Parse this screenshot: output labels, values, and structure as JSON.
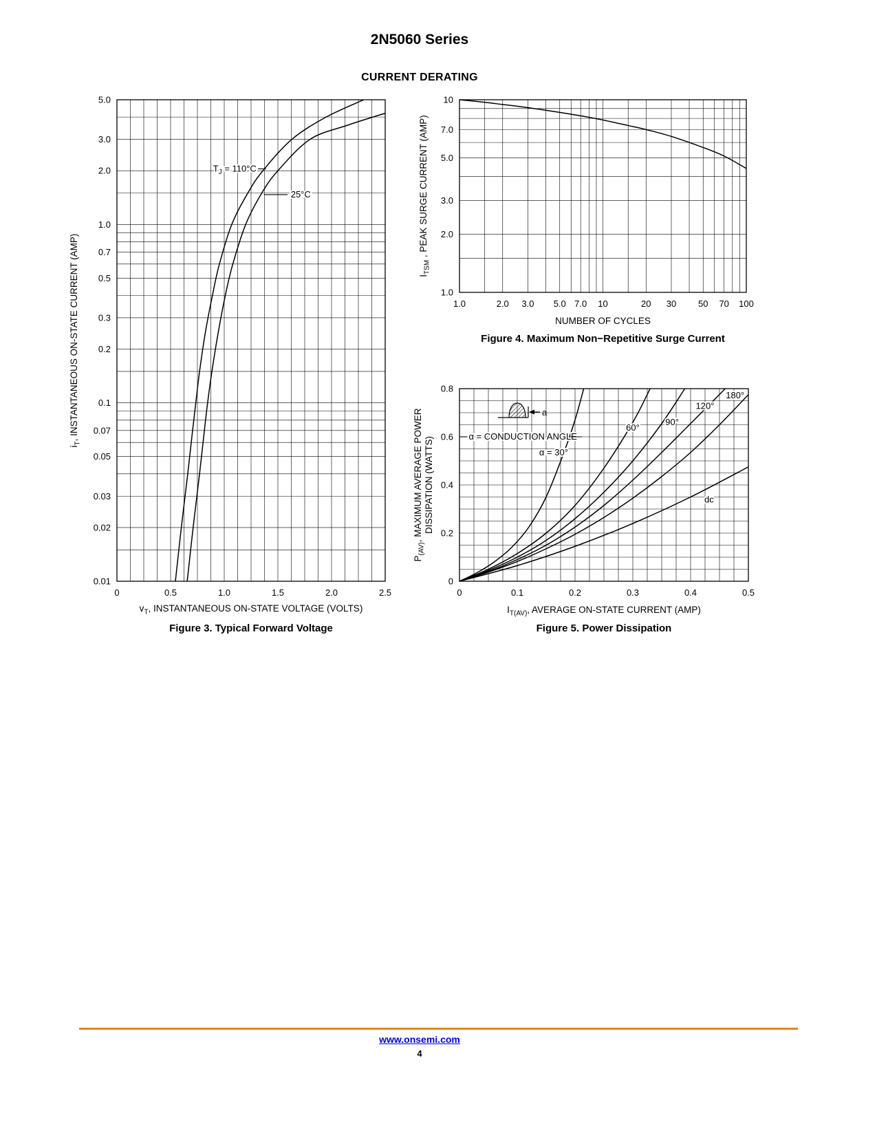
{
  "page": {
    "title": "2N5060 Series",
    "section_heading": "CURRENT DERATING",
    "footer": {
      "link": "www.onsemi.com",
      "page_number": "4",
      "rule_color": "#e8821e",
      "link_color": "#0000ee"
    }
  },
  "chart_data": [
    {
      "id": "fig3",
      "type": "line",
      "caption": "Figure 3. Typical Forward Voltage",
      "x_axis": {
        "scale": "linear",
        "min": 0,
        "max": 2.5,
        "grid_step": 0.125,
        "ticks": [
          {
            "v": 0,
            "label": "0"
          },
          {
            "v": 0.5,
            "label": "0.5"
          },
          {
            "v": 1,
            "label": "1.0"
          },
          {
            "v": 1.5,
            "label": "1.5"
          },
          {
            "v": 2,
            "label": "2.0"
          },
          {
            "v": 2.5,
            "label": "2.5"
          }
        ],
        "title_parts": [
          {
            "t": "v"
          },
          {
            "t": "T",
            "sub": true
          },
          {
            "t": ", INSTANTANEOUS ON-STATE VOLTAGE (VOLTS)"
          }
        ]
      },
      "y_axis": {
        "scale": "log",
        "min": 0.01,
        "max": 5,
        "ticks": [
          {
            "v": 5,
            "label": "5.0"
          },
          {
            "v": 3,
            "label": "3.0"
          },
          {
            "v": 2,
            "label": "2.0"
          },
          {
            "v": 1,
            "label": "1.0"
          },
          {
            "v": 0.7,
            "label": "0.7"
          },
          {
            "v": 0.5,
            "label": "0.5"
          },
          {
            "v": 0.3,
            "label": "0.3"
          },
          {
            "v": 0.2,
            "label": "0.2"
          },
          {
            "v": 0.1,
            "label": "0.1"
          },
          {
            "v": 0.07,
            "label": "0.07"
          },
          {
            "v": 0.05,
            "label": "0.05"
          },
          {
            "v": 0.03,
            "label": "0.03"
          },
          {
            "v": 0.02,
            "label": "0.02"
          },
          {
            "v": 0.01,
            "label": "0.01"
          }
        ],
        "title_lines": [
          [
            {
              "t": "i"
            },
            {
              "t": "T",
              "sub": true
            },
            {
              "t": ", INSTANTANEOUS ON-STATE CURRENT (AMP)"
            }
          ]
        ]
      },
      "series": [
        {
          "name": "TJ = 110°C",
          "points": [
            [
              0.545,
              0.01
            ],
            [
              0.6,
              0.02
            ],
            [
              0.66,
              0.04
            ],
            [
              0.705,
              0.07
            ],
            [
              0.735,
              0.1
            ],
            [
              0.77,
              0.15
            ],
            [
              0.825,
              0.25
            ],
            [
              0.89,
              0.4
            ],
            [
              0.955,
              0.6
            ],
            [
              1.07,
              1.0
            ],
            [
              1.22,
              1.5
            ],
            [
              1.36,
              2.0
            ],
            [
              1.63,
              3.0
            ],
            [
              1.95,
              4.0
            ],
            [
              2.3,
              5.0
            ]
          ]
        },
        {
          "name": "25°C",
          "points": [
            [
              0.655,
              0.01
            ],
            [
              0.71,
              0.02
            ],
            [
              0.77,
              0.04
            ],
            [
              0.815,
              0.07
            ],
            [
              0.845,
              0.1
            ],
            [
              0.885,
              0.15
            ],
            [
              0.945,
              0.25
            ],
            [
              1.01,
              0.4
            ],
            [
              1.08,
              0.6
            ],
            [
              1.2,
              1.0
            ],
            [
              1.35,
              1.5
            ],
            [
              1.5,
              2.0
            ],
            [
              1.8,
              3.0
            ],
            [
              2.15,
              3.6
            ],
            [
              2.5,
              4.2
            ]
          ]
        }
      ],
      "annotations": [
        {
          "parts": [
            {
              "t": "T"
            },
            {
              "t": "J",
              "sub": true
            },
            {
              "t": " = 110°C"
            }
          ],
          "x": 1.3,
          "y": 2.05,
          "anchor": "end"
        },
        {
          "type": "line",
          "x1": 1.315,
          "y1": 2.05,
          "x2": 1.39,
          "y2": 2.05
        },
        {
          "text": "25°C",
          "x": 1.62,
          "y": 1.47,
          "anchor": "start"
        },
        {
          "type": "line",
          "x1": 1.37,
          "y1": 1.47,
          "x2": 1.59,
          "y2": 1.47
        }
      ]
    },
    {
      "id": "fig4",
      "type": "line",
      "caption": "Figure 4. Maximum Non−Repetitive Surge Current",
      "x_axis": {
        "scale": "log",
        "min": 1,
        "max": 100,
        "ticks": [
          {
            "v": 1,
            "label": "1.0"
          },
          {
            "v": 2,
            "label": "2.0"
          },
          {
            "v": 3,
            "label": "3.0"
          },
          {
            "v": 5,
            "label": "5.0"
          },
          {
            "v": 7,
            "label": "7.0"
          },
          {
            "v": 10,
            "label": "10"
          },
          {
            "v": 20,
            "label": "20"
          },
          {
            "v": 30,
            "label": "30"
          },
          {
            "v": 50,
            "label": "50"
          },
          {
            "v": 70,
            "label": "70"
          },
          {
            "v": 100,
            "label": "100"
          }
        ],
        "title_parts": [
          {
            "t": "NUMBER OF CYCLES"
          }
        ]
      },
      "y_axis": {
        "scale": "log",
        "min": 1,
        "max": 10,
        "ticks": [
          {
            "v": 10,
            "label": "10"
          },
          {
            "v": 7,
            "label": "7.0"
          },
          {
            "v": 5,
            "label": "5.0"
          },
          {
            "v": 3,
            "label": "3.0"
          },
          {
            "v": 2,
            "label": "2.0"
          },
          {
            "v": 1,
            "label": "1.0"
          }
        ],
        "title_lines": [
          [
            {
              "t": "I"
            },
            {
              "t": "TSM",
              "sub": true
            },
            {
              "t": " , PEAK SURGE CURRENT (AMP)"
            }
          ]
        ]
      },
      "series": [
        {
          "name": "peak surge current",
          "points": [
            [
              1,
              10
            ],
            [
              1.5,
              9.7
            ],
            [
              2,
              9.45
            ],
            [
              3,
              9.1
            ],
            [
              5,
              8.6
            ],
            [
              7,
              8.25
            ],
            [
              10,
              7.85
            ],
            [
              15,
              7.35
            ],
            [
              20,
              7.0
            ],
            [
              30,
              6.45
            ],
            [
              50,
              5.65
            ],
            [
              70,
              5.1
            ],
            [
              100,
              4.4
            ]
          ]
        }
      ],
      "annotations": []
    },
    {
      "id": "fig5",
      "type": "line",
      "caption": "Figure 5. Power Dissipation",
      "x_axis": {
        "scale": "linear",
        "min": 0,
        "max": 0.5,
        "grid_step": 0.025,
        "ticks": [
          {
            "v": 0,
            "label": "0"
          },
          {
            "v": 0.1,
            "label": "0.1"
          },
          {
            "v": 0.2,
            "label": "0.2"
          },
          {
            "v": 0.3,
            "label": "0.3"
          },
          {
            "v": 0.4,
            "label": "0.4"
          },
          {
            "v": 0.5,
            "label": "0.5"
          }
        ],
        "title_parts": [
          {
            "t": "I"
          },
          {
            "t": "T(AV)",
            "sub": true
          },
          {
            "t": ", AVERAGE ON-STATE CURRENT (AMP)"
          }
        ]
      },
      "y_axis": {
        "scale": "linear",
        "min": 0,
        "max": 0.8,
        "grid_step": 0.05,
        "ticks": [
          {
            "v": 0.8,
            "label": "0.8"
          },
          {
            "v": 0.6,
            "label": "0.6"
          },
          {
            "v": 0.4,
            "label": "0.4"
          },
          {
            "v": 0.2,
            "label": "0.2"
          },
          {
            "v": 0,
            "label": "0"
          }
        ],
        "title_lines": [
          [
            {
              "t": "P"
            },
            {
              "t": "(AV)",
              "sub": true
            },
            {
              "t": ", MAXIMUM AVERAGE POWER"
            }
          ],
          [
            {
              "t": "DISSIPATION (WATTS)"
            }
          ]
        ]
      },
      "series": [
        {
          "name": "α = 30°",
          "points": [
            [
              0,
              0
            ],
            [
              0.03,
              0.035
            ],
            [
              0.06,
              0.08
            ],
            [
              0.09,
              0.14
            ],
            [
              0.12,
              0.225
            ],
            [
              0.15,
              0.35
            ],
            [
              0.18,
              0.53
            ],
            [
              0.2,
              0.67
            ],
            [
              0.215,
              0.8
            ]
          ]
        },
        {
          "name": "60°",
          "points": [
            [
              0,
              0
            ],
            [
              0.05,
              0.05
            ],
            [
              0.1,
              0.115
            ],
            [
              0.15,
              0.2
            ],
            [
              0.2,
              0.315
            ],
            [
              0.25,
              0.47
            ],
            [
              0.3,
              0.66
            ],
            [
              0.33,
              0.8
            ]
          ]
        },
        {
          "name": "90°",
          "points": [
            [
              0,
              0
            ],
            [
              0.05,
              0.045
            ],
            [
              0.1,
              0.1
            ],
            [
              0.15,
              0.17
            ],
            [
              0.2,
              0.26
            ],
            [
              0.25,
              0.37
            ],
            [
              0.3,
              0.5
            ],
            [
              0.35,
              0.655
            ],
            [
              0.39,
              0.8
            ]
          ]
        },
        {
          "name": "120°",
          "points": [
            [
              0,
              0
            ],
            [
              0.05,
              0.04
            ],
            [
              0.1,
              0.09
            ],
            [
              0.15,
              0.15
            ],
            [
              0.2,
              0.225
            ],
            [
              0.25,
              0.315
            ],
            [
              0.3,
              0.42
            ],
            [
              0.35,
              0.535
            ],
            [
              0.4,
              0.655
            ],
            [
              0.46,
              0.8
            ]
          ]
        },
        {
          "name": "180°",
          "points": [
            [
              0,
              0
            ],
            [
              0.05,
              0.038
            ],
            [
              0.1,
              0.082
            ],
            [
              0.15,
              0.135
            ],
            [
              0.2,
              0.195
            ],
            [
              0.25,
              0.265
            ],
            [
              0.3,
              0.345
            ],
            [
              0.35,
              0.435
            ],
            [
              0.4,
              0.535
            ],
            [
              0.45,
              0.65
            ],
            [
              0.5,
              0.775
            ]
          ]
        },
        {
          "name": "dc",
          "points": [
            [
              0,
              0
            ],
            [
              0.1,
              0.065
            ],
            [
              0.2,
              0.145
            ],
            [
              0.3,
              0.24
            ],
            [
              0.4,
              0.35
            ],
            [
              0.5,
              0.475
            ]
          ]
        }
      ],
      "annotations": [
        {
          "type": "line",
          "x1": 0.0,
          "y1": 0.6,
          "x2": 0.013,
          "y2": 0.6
        },
        {
          "text": "α = CONDUCTION ANGLE",
          "x": 0.016,
          "y": 0.6,
          "anchor": "start"
        },
        {
          "type": "line",
          "x1": 0.192,
          "y1": 0.6,
          "x2": 0.212,
          "y2": 0.6
        },
        {
          "text": "α = 30°",
          "x": 0.138,
          "y": 0.535,
          "anchor": "start"
        },
        {
          "text": "60°",
          "x": 0.3,
          "y": 0.637,
          "anchor": "middle"
        },
        {
          "text": "90°",
          "x": 0.368,
          "y": 0.66,
          "anchor": "middle"
        },
        {
          "text": "120°",
          "x": 0.425,
          "y": 0.727,
          "anchor": "middle"
        },
        {
          "text": "180°",
          "x": 0.477,
          "y": 0.772,
          "anchor": "middle"
        },
        {
          "text": "dc",
          "x": 0.432,
          "y": 0.338,
          "anchor": "middle"
        },
        {
          "type": "pulse_icon",
          "x": 0.1,
          "y": 0.68,
          "label": "a"
        }
      ]
    }
  ]
}
